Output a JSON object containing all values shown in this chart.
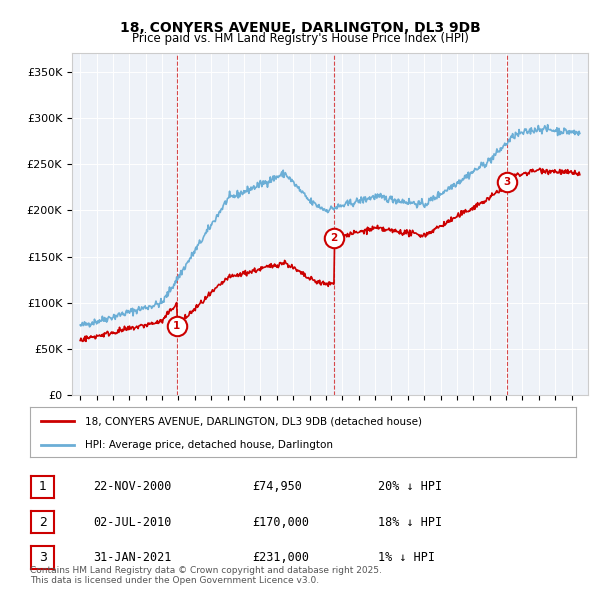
{
  "title": "18, CONYERS AVENUE, DARLINGTON, DL3 9DB",
  "subtitle": "Price paid vs. HM Land Registry's House Price Index (HPI)",
  "hpi_color": "#6baed6",
  "price_color": "#cc0000",
  "ylim": [
    0,
    370000
  ],
  "yticks": [
    0,
    50000,
    100000,
    150000,
    200000,
    250000,
    300000,
    350000
  ],
  "ytick_labels": [
    "£0",
    "£50K",
    "£100K",
    "£150K",
    "£200K",
    "£250K",
    "£300K",
    "£350K"
  ],
  "sales": [
    {
      "date_num": 2000.9,
      "price": 74950,
      "label": "1"
    },
    {
      "date_num": 2010.5,
      "price": 170000,
      "label": "2"
    },
    {
      "date_num": 2021.08,
      "price": 231000,
      "label": "3"
    }
  ],
  "legend_entries": [
    {
      "label": "18, CONYERS AVENUE, DARLINGTON, DL3 9DB (detached house)",
      "color": "#cc0000"
    },
    {
      "label": "HPI: Average price, detached house, Darlington",
      "color": "#6baed6"
    }
  ],
  "table_rows": [
    {
      "num": "1",
      "date": "22-NOV-2000",
      "price": "£74,950",
      "hpi": "20% ↓ HPI"
    },
    {
      "num": "2",
      "date": "02-JUL-2010",
      "price": "£170,000",
      "hpi": "18% ↓ HPI"
    },
    {
      "num": "3",
      "date": "31-JAN-2021",
      "price": "£231,000",
      "hpi": "1% ↓ HPI"
    }
  ],
  "footnote": "Contains HM Land Registry data © Crown copyright and database right 2025.\nThis data is licensed under the Open Government Licence v3.0.",
  "background_color": "#eef2f8"
}
